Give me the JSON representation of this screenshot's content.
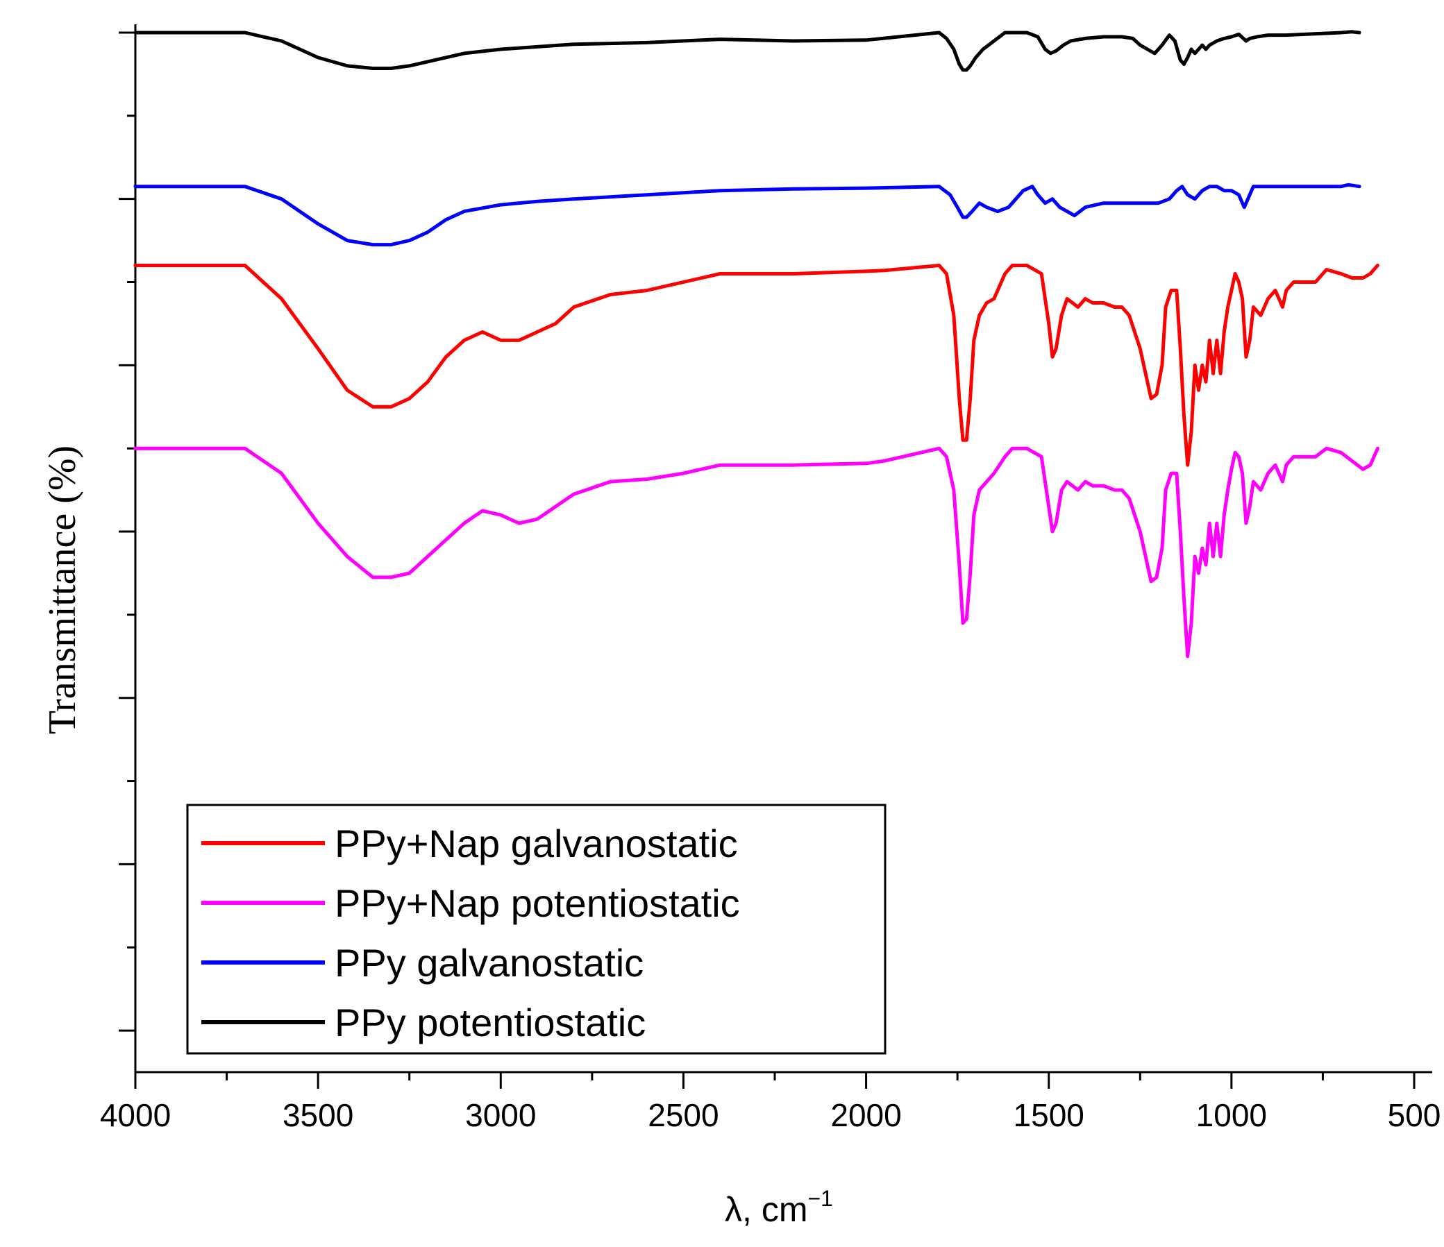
{
  "chart_data": {
    "type": "line",
    "title": "",
    "xlabel": "λ, cm",
    "xlabel_superscript": "−1",
    "ylabel": "Transmittance (%)",
    "xlim": [
      4000,
      500
    ],
    "x_ticks": [
      4000,
      3500,
      3000,
      2500,
      2000,
      1500,
      1000,
      500
    ],
    "y_ticks_labeled": false,
    "ylim": [
      -25,
      101
    ],
    "grid": false,
    "legend_position": "bottom-left",
    "legend": [
      "PPy+Nap galvanostatic",
      "PPy+Nap potentiostatic",
      "PPy galvanostatic",
      "PPy potentiostatic"
    ],
    "series": [
      {
        "name": "PPy+Nap galvanostatic",
        "color": "#ff0000",
        "points": [
          [
            4000,
            72
          ],
          [
            3700,
            72
          ],
          [
            3600,
            68
          ],
          [
            3500,
            62
          ],
          [
            3420,
            57
          ],
          [
            3350,
            55
          ],
          [
            3300,
            55
          ],
          [
            3250,
            56
          ],
          [
            3200,
            58
          ],
          [
            3150,
            61
          ],
          [
            3100,
            63
          ],
          [
            3050,
            64
          ],
          [
            3000,
            63
          ],
          [
            2950,
            63
          ],
          [
            2900,
            64
          ],
          [
            2850,
            65
          ],
          [
            2800,
            67
          ],
          [
            2700,
            68.5
          ],
          [
            2600,
            69
          ],
          [
            2500,
            70
          ],
          [
            2400,
            71
          ],
          [
            2200,
            71
          ],
          [
            2000,
            71.3
          ],
          [
            1950,
            71.4
          ],
          [
            1800,
            72
          ],
          [
            1780,
            71
          ],
          [
            1760,
            66
          ],
          [
            1745,
            56
          ],
          [
            1735,
            51
          ],
          [
            1725,
            51
          ],
          [
            1715,
            56
          ],
          [
            1705,
            63
          ],
          [
            1690,
            66
          ],
          [
            1670,
            67.5
          ],
          [
            1650,
            68
          ],
          [
            1620,
            71
          ],
          [
            1600,
            72
          ],
          [
            1560,
            72
          ],
          [
            1520,
            71
          ],
          [
            1500,
            65
          ],
          [
            1490,
            61
          ],
          [
            1480,
            62
          ],
          [
            1465,
            66
          ],
          [
            1450,
            68
          ],
          [
            1420,
            67
          ],
          [
            1400,
            68
          ],
          [
            1380,
            67.5
          ],
          [
            1350,
            67.5
          ],
          [
            1320,
            67
          ],
          [
            1300,
            67
          ],
          [
            1280,
            66
          ],
          [
            1250,
            62
          ],
          [
            1230,
            58
          ],
          [
            1220,
            56
          ],
          [
            1205,
            56.5
          ],
          [
            1190,
            60
          ],
          [
            1180,
            67
          ],
          [
            1165,
            69
          ],
          [
            1150,
            69
          ],
          [
            1140,
            62
          ],
          [
            1130,
            54
          ],
          [
            1120,
            48
          ],
          [
            1110,
            52
          ],
          [
            1100,
            60
          ],
          [
            1090,
            57
          ],
          [
            1080,
            60
          ],
          [
            1070,
            58
          ],
          [
            1060,
            63
          ],
          [
            1050,
            59
          ],
          [
            1040,
            63
          ],
          [
            1030,
            59
          ],
          [
            1020,
            64
          ],
          [
            1010,
            67
          ],
          [
            1000,
            69
          ],
          [
            990,
            71
          ],
          [
            980,
            70
          ],
          [
            970,
            68
          ],
          [
            960,
            61
          ],
          [
            950,
            63
          ],
          [
            940,
            67
          ],
          [
            920,
            66
          ],
          [
            900,
            68
          ],
          [
            880,
            69
          ],
          [
            860,
            67
          ],
          [
            850,
            69
          ],
          [
            830,
            70
          ],
          [
            800,
            70
          ],
          [
            770,
            70
          ],
          [
            740,
            71.5
          ],
          [
            700,
            71
          ],
          [
            670,
            70.5
          ],
          [
            640,
            70.5
          ],
          [
            620,
            71
          ],
          [
            600,
            72
          ]
        ]
      },
      {
        "name": "PPy+Nap potentiostatic",
        "color": "#ff00ff",
        "points": [
          [
            4000,
            50
          ],
          [
            3700,
            50
          ],
          [
            3600,
            47
          ],
          [
            3500,
            41
          ],
          [
            3420,
            37
          ],
          [
            3350,
            34.5
          ],
          [
            3300,
            34.5
          ],
          [
            3250,
            35
          ],
          [
            3200,
            37
          ],
          [
            3150,
            39
          ],
          [
            3100,
            41
          ],
          [
            3050,
            42.5
          ],
          [
            3000,
            42
          ],
          [
            2950,
            41
          ],
          [
            2900,
            41.5
          ],
          [
            2850,
            43
          ],
          [
            2800,
            44.5
          ],
          [
            2700,
            46
          ],
          [
            2600,
            46.3
          ],
          [
            2500,
            47
          ],
          [
            2400,
            48
          ],
          [
            2200,
            48
          ],
          [
            2000,
            48.2
          ],
          [
            1950,
            48.5
          ],
          [
            1800,
            50
          ],
          [
            1780,
            49
          ],
          [
            1760,
            45
          ],
          [
            1745,
            36
          ],
          [
            1735,
            29
          ],
          [
            1725,
            29.5
          ],
          [
            1715,
            35
          ],
          [
            1705,
            42
          ],
          [
            1690,
            45
          ],
          [
            1670,
            46
          ],
          [
            1650,
            47
          ],
          [
            1620,
            49
          ],
          [
            1600,
            50
          ],
          [
            1560,
            50
          ],
          [
            1520,
            49
          ],
          [
            1500,
            43
          ],
          [
            1490,
            40
          ],
          [
            1480,
            41
          ],
          [
            1465,
            45
          ],
          [
            1450,
            46
          ],
          [
            1420,
            45
          ],
          [
            1400,
            46
          ],
          [
            1380,
            45.5
          ],
          [
            1350,
            45.5
          ],
          [
            1320,
            45
          ],
          [
            1300,
            45
          ],
          [
            1280,
            44
          ],
          [
            1250,
            40
          ],
          [
            1230,
            36
          ],
          [
            1220,
            34
          ],
          [
            1205,
            34.5
          ],
          [
            1190,
            38
          ],
          [
            1180,
            45
          ],
          [
            1165,
            47
          ],
          [
            1150,
            47
          ],
          [
            1140,
            40
          ],
          [
            1130,
            32
          ],
          [
            1120,
            25
          ],
          [
            1110,
            29
          ],
          [
            1100,
            37
          ],
          [
            1090,
            35
          ],
          [
            1080,
            38
          ],
          [
            1070,
            36
          ],
          [
            1060,
            41
          ],
          [
            1050,
            37
          ],
          [
            1040,
            41
          ],
          [
            1030,
            37
          ],
          [
            1020,
            42
          ],
          [
            1010,
            45
          ],
          [
            1000,
            47.5
          ],
          [
            990,
            49.5
          ],
          [
            980,
            49
          ],
          [
            970,
            47
          ],
          [
            960,
            41
          ],
          [
            950,
            43
          ],
          [
            940,
            46
          ],
          [
            920,
            45
          ],
          [
            900,
            47
          ],
          [
            880,
            48
          ],
          [
            860,
            46
          ],
          [
            850,
            48
          ],
          [
            830,
            49
          ],
          [
            800,
            49
          ],
          [
            770,
            49
          ],
          [
            740,
            50
          ],
          [
            700,
            49.5
          ],
          [
            670,
            48.5
          ],
          [
            640,
            47.5
          ],
          [
            620,
            48
          ],
          [
            600,
            50
          ]
        ]
      },
      {
        "name": "PPy galvanostatic",
        "color": "#0000ff",
        "points": [
          [
            4000,
            81.5
          ],
          [
            3700,
            81.5
          ],
          [
            3600,
            80
          ],
          [
            3500,
            77
          ],
          [
            3420,
            75
          ],
          [
            3350,
            74.5
          ],
          [
            3300,
            74.5
          ],
          [
            3250,
            75
          ],
          [
            3200,
            76
          ],
          [
            3150,
            77.5
          ],
          [
            3100,
            78.5
          ],
          [
            3000,
            79.3
          ],
          [
            2900,
            79.7
          ],
          [
            2800,
            80
          ],
          [
            2600,
            80.5
          ],
          [
            2400,
            81
          ],
          [
            2200,
            81.2
          ],
          [
            2000,
            81.3
          ],
          [
            1800,
            81.5
          ],
          [
            1770,
            80.5
          ],
          [
            1750,
            79
          ],
          [
            1735,
            77.8
          ],
          [
            1725,
            77.8
          ],
          [
            1710,
            78.5
          ],
          [
            1690,
            79.5
          ],
          [
            1670,
            79
          ],
          [
            1640,
            78.5
          ],
          [
            1610,
            79
          ],
          [
            1590,
            80
          ],
          [
            1570,
            81
          ],
          [
            1545,
            81.5
          ],
          [
            1530,
            80.5
          ],
          [
            1510,
            79.5
          ],
          [
            1490,
            80
          ],
          [
            1470,
            79
          ],
          [
            1450,
            78.5
          ],
          [
            1430,
            78
          ],
          [
            1400,
            79
          ],
          [
            1350,
            79.5
          ],
          [
            1300,
            79.5
          ],
          [
            1250,
            79.5
          ],
          [
            1200,
            79.5
          ],
          [
            1170,
            80
          ],
          [
            1150,
            81
          ],
          [
            1135,
            81.5
          ],
          [
            1120,
            80.5
          ],
          [
            1100,
            80
          ],
          [
            1080,
            81
          ],
          [
            1060,
            81.5
          ],
          [
            1040,
            81.5
          ],
          [
            1020,
            81
          ],
          [
            1000,
            81
          ],
          [
            980,
            80.5
          ],
          [
            965,
            79
          ],
          [
            955,
            80
          ],
          [
            940,
            81.5
          ],
          [
            900,
            81.5
          ],
          [
            850,
            81.5
          ],
          [
            800,
            81.5
          ],
          [
            750,
            81.5
          ],
          [
            700,
            81.5
          ],
          [
            680,
            81.7
          ],
          [
            650,
            81.5
          ]
        ]
      },
      {
        "name": "PPy potentiostatic",
        "color": "#000000",
        "points": [
          [
            4000,
            100
          ],
          [
            3700,
            100
          ],
          [
            3600,
            99
          ],
          [
            3500,
            97
          ],
          [
            3420,
            96
          ],
          [
            3350,
            95.7
          ],
          [
            3300,
            95.7
          ],
          [
            3250,
            96
          ],
          [
            3200,
            96.5
          ],
          [
            3150,
            97
          ],
          [
            3100,
            97.5
          ],
          [
            3000,
            98
          ],
          [
            2900,
            98.3
          ],
          [
            2800,
            98.6
          ],
          [
            2600,
            98.8
          ],
          [
            2400,
            99.2
          ],
          [
            2200,
            99
          ],
          [
            2000,
            99.1
          ],
          [
            1800,
            100
          ],
          [
            1780,
            99.3
          ],
          [
            1760,
            98
          ],
          [
            1745,
            96.2
          ],
          [
            1735,
            95.5
          ],
          [
            1725,
            95.5
          ],
          [
            1715,
            96
          ],
          [
            1700,
            97
          ],
          [
            1680,
            98
          ],
          [
            1650,
            99
          ],
          [
            1620,
            100
          ],
          [
            1600,
            100
          ],
          [
            1560,
            100
          ],
          [
            1530,
            99.5
          ],
          [
            1510,
            98
          ],
          [
            1495,
            97.5
          ],
          [
            1480,
            97.8
          ],
          [
            1460,
            98.5
          ],
          [
            1440,
            99
          ],
          [
            1400,
            99.3
          ],
          [
            1350,
            99.5
          ],
          [
            1300,
            99.5
          ],
          [
            1270,
            99.3
          ],
          [
            1250,
            98.5
          ],
          [
            1230,
            98
          ],
          [
            1210,
            97.5
          ],
          [
            1190,
            98.5
          ],
          [
            1170,
            99.7
          ],
          [
            1155,
            99
          ],
          [
            1140,
            96.7
          ],
          [
            1130,
            96.2
          ],
          [
            1120,
            97
          ],
          [
            1110,
            98
          ],
          [
            1100,
            97.5
          ],
          [
            1090,
            98
          ],
          [
            1080,
            98.5
          ],
          [
            1070,
            98
          ],
          [
            1060,
            98.5
          ],
          [
            1040,
            99
          ],
          [
            1020,
            99.3
          ],
          [
            1000,
            99.5
          ],
          [
            980,
            99.8
          ],
          [
            960,
            99
          ],
          [
            950,
            99.3
          ],
          [
            930,
            99.5
          ],
          [
            900,
            99.7
          ],
          [
            850,
            99.7
          ],
          [
            800,
            99.8
          ],
          [
            750,
            99.9
          ],
          [
            700,
            100
          ],
          [
            670,
            100.1
          ],
          [
            650,
            100
          ]
        ]
      }
    ]
  }
}
